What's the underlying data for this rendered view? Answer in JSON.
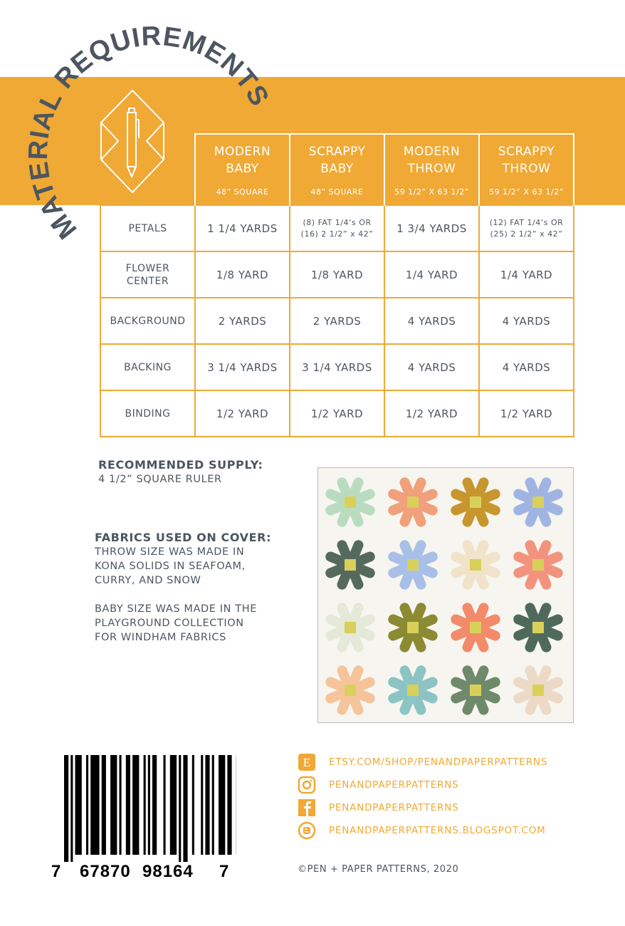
{
  "title": "MATERIAL REQUIREMENTS",
  "colors": {
    "accent": "#f0a935",
    "text": "#4d5660",
    "flower_center": "#d8d05a"
  },
  "table": {
    "columns": [
      {
        "name": "MODERN BABY",
        "line1": "MODERN",
        "line2": "BABY",
        "size": "48” SQUARE"
      },
      {
        "name": "SCRAPPY BABY",
        "line1": "SCRAPPY",
        "line2": "BABY",
        "size": "48” SQUARE"
      },
      {
        "name": "MODERN THROW",
        "line1": "MODERN",
        "line2": "THROW",
        "size": "59 1/2” X 63 1/2”"
      },
      {
        "name": "SCRAPPY THROW",
        "line1": "SCRAPPY",
        "line2": "THROW",
        "size": "59 1/2” X 63 1/2”"
      }
    ],
    "rows": [
      {
        "label": "PETALS",
        "cells": [
          "1 1/4 YARDS",
          "(8) FAT 1/4’s OR (16) 2 1/2” x 42”",
          "1 3/4 YARDS",
          "(12) FAT 1/4’s OR (25) 2 1/2” x 42”"
        ]
      },
      {
        "label": "FLOWER CENTER",
        "cells": [
          "1/8 YARD",
          "1/8 YARD",
          "1/4 YARD",
          "1/4 YARD"
        ]
      },
      {
        "label": "BACKGROUND",
        "cells": [
          "2 YARDS",
          "2 YARDS",
          "4 YARDS",
          "4 YARDS"
        ]
      },
      {
        "label": "BACKING",
        "cells": [
          "3 1/4 YARDS",
          "3 1/4 YARDS",
          "4 YARDS",
          "4 YARDS"
        ]
      },
      {
        "label": "BINDING",
        "cells": [
          "1/2 YARD",
          "1/2 YARD",
          "1/2 YARD",
          "1/2 YARD"
        ]
      }
    ]
  },
  "supply": {
    "heading": "RECOMMENDED SUPPLY:",
    "text": "4 1/2” SQUARE RULER"
  },
  "fabrics": {
    "heading": "FABRICS USED ON COVER:",
    "para1": [
      "THROW SIZE WAS MADE IN",
      "KONA SOLIDS IN SEAFOAM,",
      "CURRY, AND SNOW"
    ],
    "para2": [
      "BABY SIZE WAS MADE IN THE",
      "PLAYGROUND COLLECTION",
      "FOR WINDHAM FABRICS"
    ]
  },
  "quilt_colors": [
    "#b9dcc0",
    "#f0a07a",
    "#c8962e",
    "#a0b4e4",
    "#56695d",
    "#a8bfe8",
    "#f1e3c9",
    "#f3937e",
    "#e4e9d8",
    "#8c8a32",
    "#f38a6a",
    "#4f6a5c",
    "#f5c49a",
    "#8cc3c4",
    "#6f8a6a",
    "#ecd9c6"
  ],
  "barcode": {
    "digits": [
      "7",
      "67870",
      "98164",
      "7"
    ]
  },
  "links": [
    {
      "icon": "etsy-icon",
      "text": "ETSY.COM/SHOP/PENANDPAPERPATTERNS"
    },
    {
      "icon": "instagram-icon",
      "text": "PENANDPAPERPATTERNS"
    },
    {
      "icon": "facebook-icon",
      "text": "PENANDPAPERPATTERNS"
    },
    {
      "icon": "blogger-icon",
      "text": "PENANDPAPERPATTERNS.BLOGSPOT.COM"
    }
  ],
  "copyright": "©PEN + PAPER PATTERNS, 2020"
}
